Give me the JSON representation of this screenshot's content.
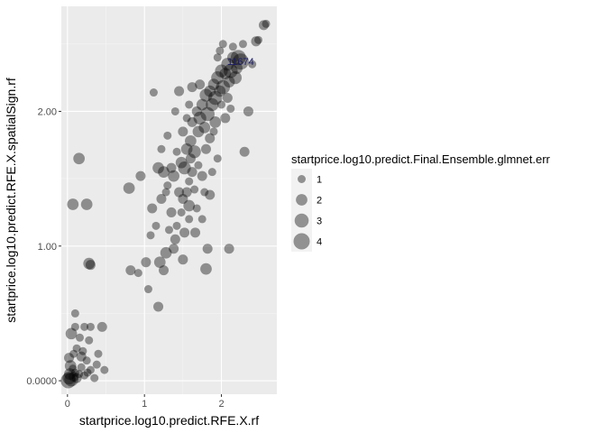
{
  "chart_data": {
    "type": "scatter",
    "title": "",
    "xlabel": "startprice.log10.predict.RFE.X.rf",
    "ylabel": "startprice.log10.predict.RFE.X.spatialSign.rf",
    "xlim": [
      -0.08,
      2.72
    ],
    "ylim": [
      -0.1,
      2.78
    ],
    "x_ticks": [
      {
        "value": 0,
        "label": "0"
      },
      {
        "value": 1,
        "label": "1"
      },
      {
        "value": 2,
        "label": "2"
      }
    ],
    "y_ticks": [
      {
        "value": 0,
        "label": "0.0000"
      },
      {
        "value": 1,
        "label": "1.00"
      },
      {
        "value": 2,
        "label": "2.00"
      }
    ],
    "grid": true,
    "legend": {
      "title": "startprice.log10.predict.Final.Ensemble.glmnet.err",
      "position": "right",
      "entries": [
        {
          "label": "1",
          "size": 1
        },
        {
          "label": "2",
          "size": 2
        },
        {
          "label": "3",
          "size": 3
        },
        {
          "label": "4",
          "size": 4
        }
      ]
    },
    "colors": {
      "panel": "#ebebeb",
      "grid_major": "#ffffff",
      "point": "#000000",
      "point_label": "#1a1a6e"
    },
    "point_alpha": 0.4,
    "size_scale": {
      "size1_radius": 4.5,
      "size4_radius": 9
    },
    "annotations": [
      {
        "text": "11674",
        "x": 2.25,
        "y": 2.37
      },
      {
        "text": "",
        "x": 1.88,
        "y": 2.02
      },
      {
        "text": "",
        "x": 1.9,
        "y": 1.91
      },
      {
        "text": "",
        "x": 1.74,
        "y": 1.76
      }
    ],
    "points": [
      {
        "x": 0.02,
        "y": 0.02,
        "size": 2.5
      },
      {
        "x": 0.05,
        "y": 0.01,
        "size": 3
      },
      {
        "x": 0.03,
        "y": 0.05,
        "size": 2
      },
      {
        "x": 0.08,
        "y": 0.03,
        "size": 1.5
      },
      {
        "x": 0.01,
        "y": 0.0,
        "size": 3.5
      },
      {
        "x": 0.1,
        "y": 0.06,
        "size": 1
      },
      {
        "x": 0.04,
        "y": 0.11,
        "size": 2
      },
      {
        "x": 0.12,
        "y": 0.02,
        "size": 1.5
      },
      {
        "x": 0.07,
        "y": 0.09,
        "size": 1
      },
      {
        "x": 0.15,
        "y": 0.05,
        "size": 1
      },
      {
        "x": 0.02,
        "y": 0.17,
        "size": 1.5
      },
      {
        "x": 0.18,
        "y": 0.1,
        "size": 1
      },
      {
        "x": 0.22,
        "y": 0.04,
        "size": 1
      },
      {
        "x": 0.25,
        "y": 0.15,
        "size": 1
      },
      {
        "x": 0.2,
        "y": 0.22,
        "size": 1
      },
      {
        "x": 0.12,
        "y": 0.24,
        "size": 1
      },
      {
        "x": 0.3,
        "y": 0.08,
        "size": 1
      },
      {
        "x": 0.35,
        "y": 0.02,
        "size": 1
      },
      {
        "x": 0.28,
        "y": 0.3,
        "size": 1
      },
      {
        "x": 0.16,
        "y": 0.32,
        "size": 1
      },
      {
        "x": 0.05,
        "y": 0.35,
        "size": 2
      },
      {
        "x": 0.1,
        "y": 0.4,
        "size": 1
      },
      {
        "x": 0.22,
        "y": 0.4,
        "size": 1
      },
      {
        "x": 0.4,
        "y": 0.2,
        "size": 1
      },
      {
        "x": 0.45,
        "y": 0.4,
        "size": 1.5
      },
      {
        "x": 0.3,
        "y": 0.4,
        "size": 1
      },
      {
        "x": 0.1,
        "y": 0.5,
        "size": 1
      },
      {
        "x": 0.48,
        "y": 0.08,
        "size": 1
      },
      {
        "x": 0.38,
        "y": 0.12,
        "size": 1
      },
      {
        "x": 0.08,
        "y": 0.2,
        "size": 1
      },
      {
        "x": 0.18,
        "y": 0.18,
        "size": 1.5
      },
      {
        "x": 0.26,
        "y": 0.06,
        "size": 1
      },
      {
        "x": 0.15,
        "y": 1.65,
        "size": 2
      },
      {
        "x": 0.07,
        "y": 1.31,
        "size": 2
      },
      {
        "x": 0.25,
        "y": 1.31,
        "size": 2
      },
      {
        "x": 0.28,
        "y": 0.87,
        "size": 2
      },
      {
        "x": 0.3,
        "y": 0.86,
        "size": 1.5
      },
      {
        "x": 1.18,
        "y": 0.55,
        "size": 1.5
      },
      {
        "x": 1.12,
        "y": 2.14,
        "size": 1
      },
      {
        "x": 0.82,
        "y": 0.82,
        "size": 1.5
      },
      {
        "x": 0.8,
        "y": 1.43,
        "size": 2
      },
      {
        "x": 0.95,
        "y": 1.52,
        "size": 1.5
      },
      {
        "x": 1.02,
        "y": 0.88,
        "size": 1.5
      },
      {
        "x": 1.05,
        "y": 0.68,
        "size": 1
      },
      {
        "x": 0.92,
        "y": 0.8,
        "size": 1
      },
      {
        "x": 1.1,
        "y": 1.28,
        "size": 1.5
      },
      {
        "x": 1.15,
        "y": 1.15,
        "size": 1
      },
      {
        "x": 1.2,
        "y": 0.88,
        "size": 2
      },
      {
        "x": 1.25,
        "y": 0.82,
        "size": 1.5
      },
      {
        "x": 1.22,
        "y": 1.35,
        "size": 1.5
      },
      {
        "x": 1.3,
        "y": 1.45,
        "size": 1
      },
      {
        "x": 1.08,
        "y": 1.08,
        "size": 1
      },
      {
        "x": 1.32,
        "y": 1.12,
        "size": 1
      },
      {
        "x": 1.28,
        "y": 0.95,
        "size": 2
      },
      {
        "x": 1.4,
        "y": 1.05,
        "size": 1.5
      },
      {
        "x": 1.35,
        "y": 1.25,
        "size": 1.5
      },
      {
        "x": 1.38,
        "y": 1.52,
        "size": 2
      },
      {
        "x": 1.45,
        "y": 1.4,
        "size": 1.5
      },
      {
        "x": 1.48,
        "y": 1.62,
        "size": 2
      },
      {
        "x": 1.52,
        "y": 1.58,
        "size": 2.5
      },
      {
        "x": 1.55,
        "y": 1.72,
        "size": 2
      },
      {
        "x": 1.5,
        "y": 1.85,
        "size": 1.5
      },
      {
        "x": 1.58,
        "y": 1.48,
        "size": 1
      },
      {
        "x": 1.6,
        "y": 1.78,
        "size": 2
      },
      {
        "x": 1.65,
        "y": 1.7,
        "size": 2.5
      },
      {
        "x": 1.62,
        "y": 1.92,
        "size": 1.5
      },
      {
        "x": 1.7,
        "y": 1.85,
        "size": 2
      },
      {
        "x": 1.68,
        "y": 2.0,
        "size": 1.5
      },
      {
        "x": 1.72,
        "y": 1.95,
        "size": 2.5
      },
      {
        "x": 1.75,
        "y": 2.05,
        "size": 2
      },
      {
        "x": 1.78,
        "y": 1.88,
        "size": 2
      },
      {
        "x": 1.8,
        "y": 2.12,
        "size": 2.5
      },
      {
        "x": 1.82,
        "y": 1.98,
        "size": 3
      },
      {
        "x": 1.85,
        "y": 2.15,
        "size": 2
      },
      {
        "x": 1.88,
        "y": 2.05,
        "size": 2.5
      },
      {
        "x": 1.9,
        "y": 2.2,
        "size": 2
      },
      {
        "x": 1.92,
        "y": 2.1,
        "size": 3
      },
      {
        "x": 1.95,
        "y": 2.25,
        "size": 2.5
      },
      {
        "x": 1.98,
        "y": 2.15,
        "size": 2
      },
      {
        "x": 2.0,
        "y": 2.3,
        "size": 2.5
      },
      {
        "x": 2.02,
        "y": 2.18,
        "size": 3
      },
      {
        "x": 2.05,
        "y": 2.28,
        "size": 2
      },
      {
        "x": 2.08,
        "y": 2.35,
        "size": 2.5
      },
      {
        "x": 2.1,
        "y": 2.22,
        "size": 2
      },
      {
        "x": 2.12,
        "y": 2.3,
        "size": 3
      },
      {
        "x": 2.15,
        "y": 2.4,
        "size": 2
      },
      {
        "x": 2.18,
        "y": 2.25,
        "size": 2.5
      },
      {
        "x": 2.2,
        "y": 2.32,
        "size": 2
      },
      {
        "x": 2.22,
        "y": 2.4,
        "size": 3.5
      },
      {
        "x": 1.55,
        "y": 1.4,
        "size": 1.5
      },
      {
        "x": 1.42,
        "y": 1.7,
        "size": 1
      },
      {
        "x": 1.58,
        "y": 2.05,
        "size": 1
      },
      {
        "x": 1.45,
        "y": 2.15,
        "size": 1.5
      },
      {
        "x": 1.3,
        "y": 1.82,
        "size": 1
      },
      {
        "x": 1.62,
        "y": 1.55,
        "size": 1.5
      },
      {
        "x": 1.7,
        "y": 1.6,
        "size": 1
      },
      {
        "x": 1.8,
        "y": 1.72,
        "size": 1.5
      },
      {
        "x": 1.9,
        "y": 1.85,
        "size": 1
      },
      {
        "x": 2.05,
        "y": 1.95,
        "size": 1.5
      },
      {
        "x": 2.0,
        "y": 2.05,
        "size": 1
      },
      {
        "x": 1.75,
        "y": 1.2,
        "size": 1
      },
      {
        "x": 1.82,
        "y": 0.98,
        "size": 1.5
      },
      {
        "x": 1.8,
        "y": 0.83,
        "size": 2
      },
      {
        "x": 1.85,
        "y": 1.38,
        "size": 1.5
      },
      {
        "x": 1.68,
        "y": 1.28,
        "size": 1
      },
      {
        "x": 2.1,
        "y": 0.98,
        "size": 1.5
      },
      {
        "x": 1.5,
        "y": 0.9,
        "size": 1.5
      },
      {
        "x": 1.95,
        "y": 1.65,
        "size": 1
      },
      {
        "x": 2.3,
        "y": 1.7,
        "size": 1.5
      },
      {
        "x": 2.35,
        "y": 2.0,
        "size": 1.5
      },
      {
        "x": 2.4,
        "y": 2.35,
        "size": 1
      },
      {
        "x": 2.45,
        "y": 2.52,
        "size": 1.5
      },
      {
        "x": 2.48,
        "y": 2.53,
        "size": 1
      },
      {
        "x": 2.55,
        "y": 2.64,
        "size": 1.5
      },
      {
        "x": 2.58,
        "y": 2.65,
        "size": 1
      },
      {
        "x": 2.25,
        "y": 2.37,
        "size": 4
      },
      {
        "x": 2.15,
        "y": 2.48,
        "size": 1
      },
      {
        "x": 2.02,
        "y": 2.5,
        "size": 1
      },
      {
        "x": 2.28,
        "y": 2.5,
        "size": 1
      },
      {
        "x": 1.95,
        "y": 2.4,
        "size": 1
      },
      {
        "x": 1.98,
        "y": 2.45,
        "size": 1
      },
      {
        "x": 1.62,
        "y": 2.18,
        "size": 1.5
      },
      {
        "x": 1.4,
        "y": 2.0,
        "size": 1
      },
      {
        "x": 1.35,
        "y": 1.58,
        "size": 1.5
      },
      {
        "x": 1.25,
        "y": 1.55,
        "size": 2
      },
      {
        "x": 1.28,
        "y": 1.4,
        "size": 1
      },
      {
        "x": 1.48,
        "y": 1.25,
        "size": 1
      },
      {
        "x": 1.52,
        "y": 1.1,
        "size": 1.5
      },
      {
        "x": 1.18,
        "y": 1.58,
        "size": 2
      },
      {
        "x": 1.22,
        "y": 1.72,
        "size": 1
      },
      {
        "x": 1.58,
        "y": 1.3,
        "size": 2
      },
      {
        "x": 1.65,
        "y": 1.42,
        "size": 1
      },
      {
        "x": 1.6,
        "y": 1.65,
        "size": 1.5
      },
      {
        "x": 1.75,
        "y": 1.52,
        "size": 1.5
      },
      {
        "x": 1.88,
        "y": 1.55,
        "size": 1
      },
      {
        "x": 1.85,
        "y": 1.8,
        "size": 1.5
      },
      {
        "x": 1.92,
        "y": 1.92,
        "size": 2
      },
      {
        "x": 2.08,
        "y": 2.1,
        "size": 1.5
      },
      {
        "x": 2.12,
        "y": 2.02,
        "size": 1
      },
      {
        "x": 1.72,
        "y": 2.2,
        "size": 1.5
      },
      {
        "x": 1.55,
        "y": 1.95,
        "size": 1
      },
      {
        "x": 1.5,
        "y": 1.35,
        "size": 1.5
      },
      {
        "x": 1.42,
        "y": 1.15,
        "size": 1
      },
      {
        "x": 1.38,
        "y": 0.98,
        "size": 1.5
      },
      {
        "x": 1.58,
        "y": 1.2,
        "size": 1
      },
      {
        "x": 1.66,
        "y": 1.1,
        "size": 1.5
      },
      {
        "x": 1.78,
        "y": 1.4,
        "size": 1
      }
    ]
  }
}
